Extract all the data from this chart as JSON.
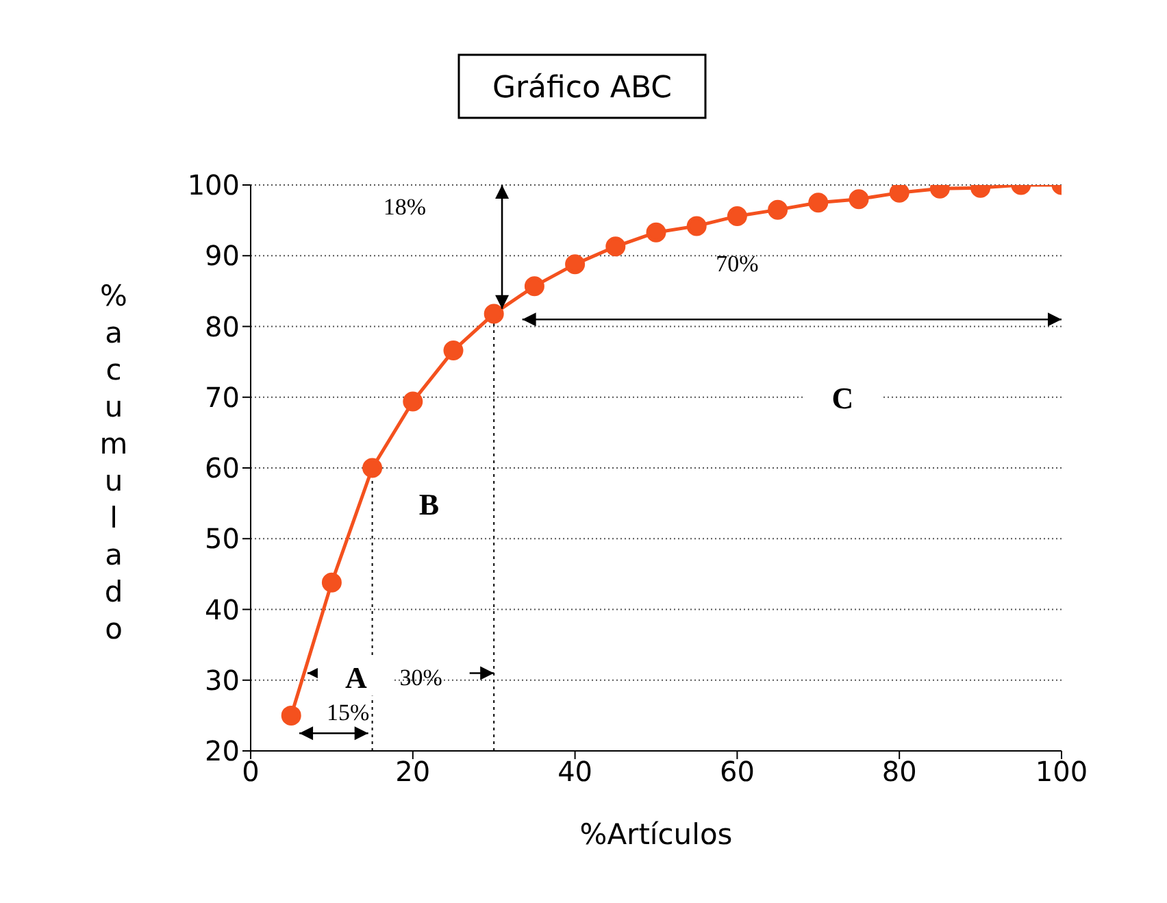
{
  "chart_data": {
    "type": "line",
    "title": "Gráfico ABC",
    "xlabel": "%Artículos",
    "ylabel": "% acumulado",
    "x": [
      5,
      10,
      15,
      20,
      25,
      30,
      35,
      40,
      45,
      50,
      55,
      60,
      65,
      70,
      75,
      80,
      85,
      90,
      95,
      100
    ],
    "series": [
      {
        "color": "#f4511e",
        "values": [
          25,
          43.8,
          60,
          69.4,
          76.6,
          81.8,
          85.7,
          88.8,
          91.3,
          93.3,
          94.2,
          95.6,
          96.5,
          97.5,
          98,
          98.9,
          99.5,
          99.6,
          100,
          100
        ]
      }
    ],
    "xlim": [
      0,
      100
    ],
    "xticks": [
      0,
      20,
      40,
      60,
      80,
      100
    ],
    "ylim": [
      20,
      100
    ],
    "yticks": [
      20,
      30,
      40,
      50,
      60,
      70,
      80,
      90,
      100
    ],
    "grid": "y",
    "marker": "circle",
    "line_style": "solid",
    "ref_lines": [
      {
        "axis": "x",
        "value": 15,
        "color": "#000000",
        "line_style": "dotted"
      },
      {
        "axis": "x",
        "value": 30,
        "color": "#000000",
        "line_style": "dotted"
      }
    ],
    "annotations": [
      "18%",
      "70%",
      "C",
      "B",
      "A",
      "30%",
      "15%"
    ]
  }
}
